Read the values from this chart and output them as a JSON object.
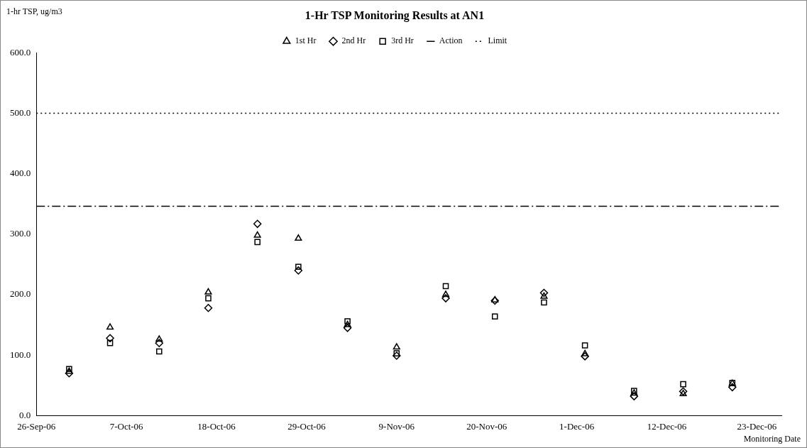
{
  "chart_data": {
    "type": "scatter",
    "title": "1-Hr TSP Monitoring Results at AN1",
    "xlabel": "Monitoring Date",
    "ylabel": "1-hr TSP, ug/m3",
    "x": [
      "--09-30",
      "--10-05",
      "--10-11",
      "--10-17",
      "--10-23",
      "--10-28",
      "--11-03",
      "--11-09",
      "--11-15",
      "--11-21",
      "--11-27",
      "--12-02",
      "--12-08",
      "--12-14",
      "--12-20"
    ],
    "series": [
      {
        "name": "1st Hr",
        "color": "#000000",
        "marker": "triangle",
        "values": [
          73,
          146,
          126,
          204,
          298,
          293,
          150,
          113,
          200,
          191,
          197,
          102,
          37,
          36,
          53
        ]
      },
      {
        "name": "2nd Hr",
        "color": "#000000",
        "marker": "diamond",
        "values": [
          70,
          128,
          120,
          178,
          317,
          240,
          145,
          99,
          194,
          190,
          203,
          98,
          32,
          40,
          47
        ]
      },
      {
        "name": "3rd Hr",
        "color": "#000000",
        "marker": "square",
        "values": [
          77,
          120,
          106,
          194,
          287,
          246,
          156,
          103,
          214,
          164,
          187,
          116,
          41,
          52,
          54
        ]
      }
    ],
    "ref_lines": [
      {
        "axis": "y",
        "value": 346,
        "label": "Action",
        "color": "#000000",
        "line_style": "dashdot"
      },
      {
        "axis": "y",
        "value": 500,
        "label": "Limit",
        "color": "#000000",
        "line_style": "dotted"
      }
    ],
    "xlim": [
      "--09-26",
      "--12-26"
    ],
    "xticks": [
      {
        "value": "--09-26",
        "label": "26-Sep-06"
      },
      {
        "value": "--10-07",
        "label": "7-Oct-06"
      },
      {
        "value": "--10-18",
        "label": "18-Oct-06"
      },
      {
        "value": "--10-29",
        "label": "29-Oct-06"
      },
      {
        "value": "--11-09",
        "label": "9-Nov-06"
      },
      {
        "value": "--11-20",
        "label": "20-Nov-06"
      },
      {
        "value": "--12-01",
        "label": "1-Dec-06"
      },
      {
        "value": "--12-12",
        "label": "12-Dec-06"
      },
      {
        "value": "--12-23",
        "label": "23-Dec-06"
      }
    ],
    "ylim": [
      0,
      600
    ],
    "yticks": [
      {
        "value": 0,
        "label": "0.0"
      },
      {
        "value": 100,
        "label": "100.0"
      },
      {
        "value": 200,
        "label": "200.0"
      },
      {
        "value": 300,
        "label": "300.0"
      },
      {
        "value": 400,
        "label": "400.0"
      },
      {
        "value": 500,
        "label": "500.0"
      },
      {
        "value": 600,
        "label": "600.0"
      }
    ],
    "grid": false,
    "legend": "top"
  }
}
